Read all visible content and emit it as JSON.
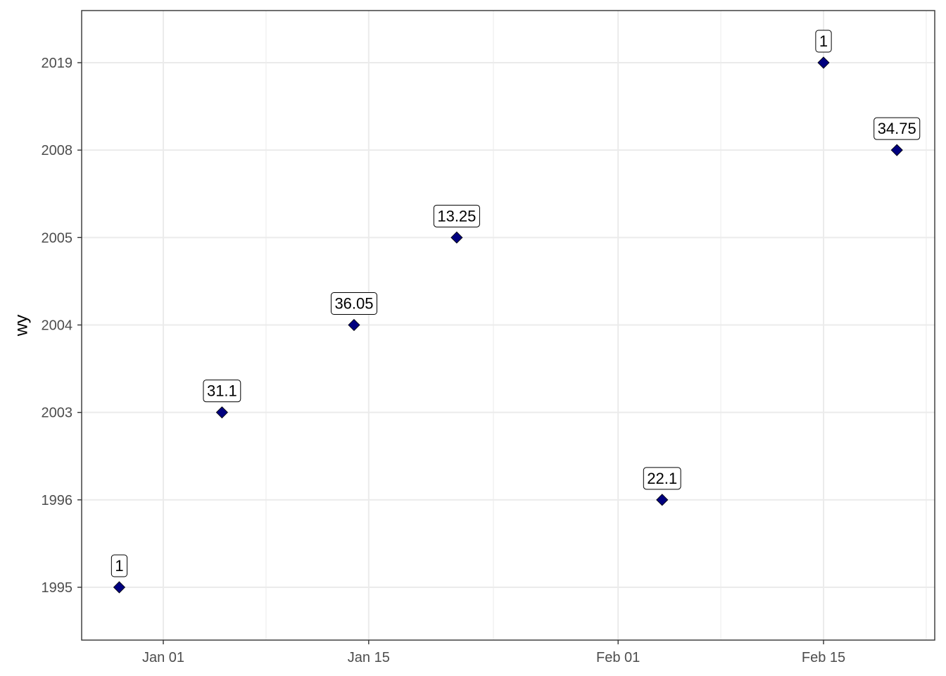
{
  "chart_data": {
    "type": "scatter",
    "title": "",
    "xlabel": "",
    "ylabel": "wy",
    "x_axis": {
      "scale": "date",
      "range": [
        "2018-12-27",
        "2019-02-20"
      ],
      "ticks": [
        {
          "date": "2019-01-01",
          "label": "Jan 01"
        },
        {
          "date": "2019-01-15",
          "label": "Jan 15"
        },
        {
          "date": "2019-02-01",
          "label": "Feb 01"
        },
        {
          "date": "2019-02-15",
          "label": "Feb 15"
        }
      ]
    },
    "y_axis": {
      "scale": "discrete",
      "categories": [
        "1995",
        "1996",
        "2003",
        "2004",
        "2005",
        "2008",
        "2019"
      ]
    },
    "grid": true,
    "legend": "none",
    "point_shape": "diamond",
    "point_color": "#00007f",
    "points": [
      {
        "date": "2018-12-29",
        "wy": "1995",
        "label": "1"
      },
      {
        "date": "2019-01-05",
        "wy": "2003",
        "label": "31.1"
      },
      {
        "date": "2019-01-14",
        "wy": "2004",
        "label": "36.05"
      },
      {
        "date": "2019-01-21",
        "wy": "2005",
        "label": "13.25"
      },
      {
        "date": "2019-02-04",
        "wy": "1996",
        "label": "22.1"
      },
      {
        "date": "2019-02-15",
        "wy": "2019",
        "label": "1"
      },
      {
        "date": "2019-02-20",
        "wy": "2008",
        "label": "34.75"
      }
    ]
  }
}
